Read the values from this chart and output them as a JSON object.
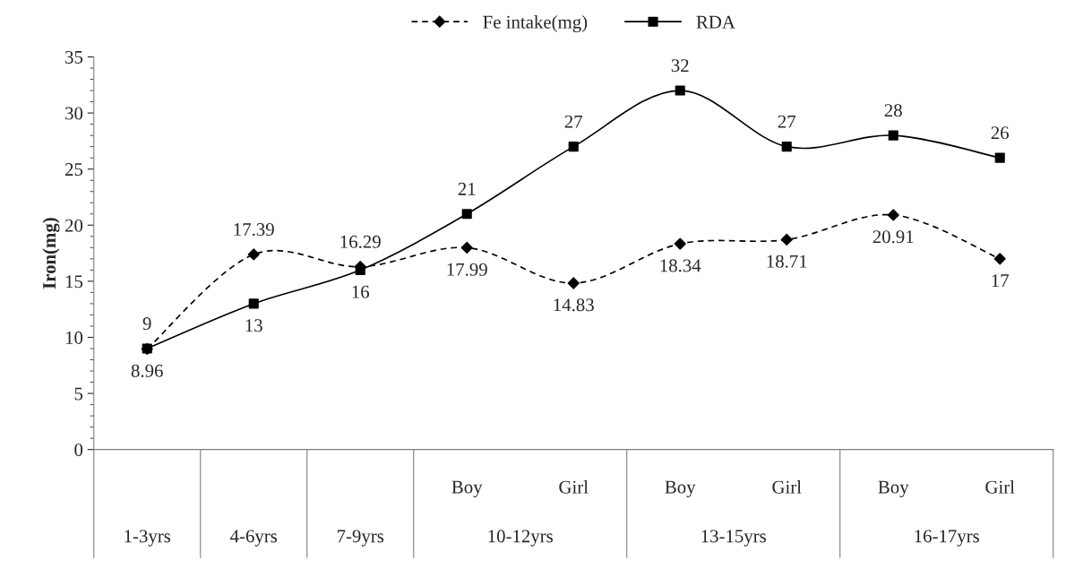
{
  "chart_data": {
    "type": "line",
    "categories": [
      null,
      null,
      null,
      "Boy",
      "Girl",
      "Boy",
      "Girl",
      "Boy",
      "Girl"
    ],
    "annotations": [
      "1-3yrs",
      "4-6yrs",
      "7-9yrs",
      "10-12yrs",
      "13-15yrs",
      "16-17yrs"
    ],
    "ylabel": "Iron(mg)",
    "series": [
      {
        "name": "Fe intake(mg)",
        "color": "#000000",
        "values": [
          8.96,
          17.39,
          16.29,
          17.99,
          14.83,
          18.34,
          18.71,
          20.91,
          17
        ],
        "marker": "diamond",
        "line_style": "dashed"
      },
      {
        "name": "RDA",
        "color": "#000000",
        "values": [
          9,
          13,
          16,
          21,
          27,
          32,
          27,
          28,
          26
        ],
        "marker": "square",
        "line_style": "solid"
      }
    ],
    "ylim": [
      0,
      35
    ],
    "yticks": [
      0,
      5,
      10,
      15,
      20,
      25,
      30,
      35
    ],
    "grid": false,
    "legend": "top",
    "data_labels": true
  }
}
